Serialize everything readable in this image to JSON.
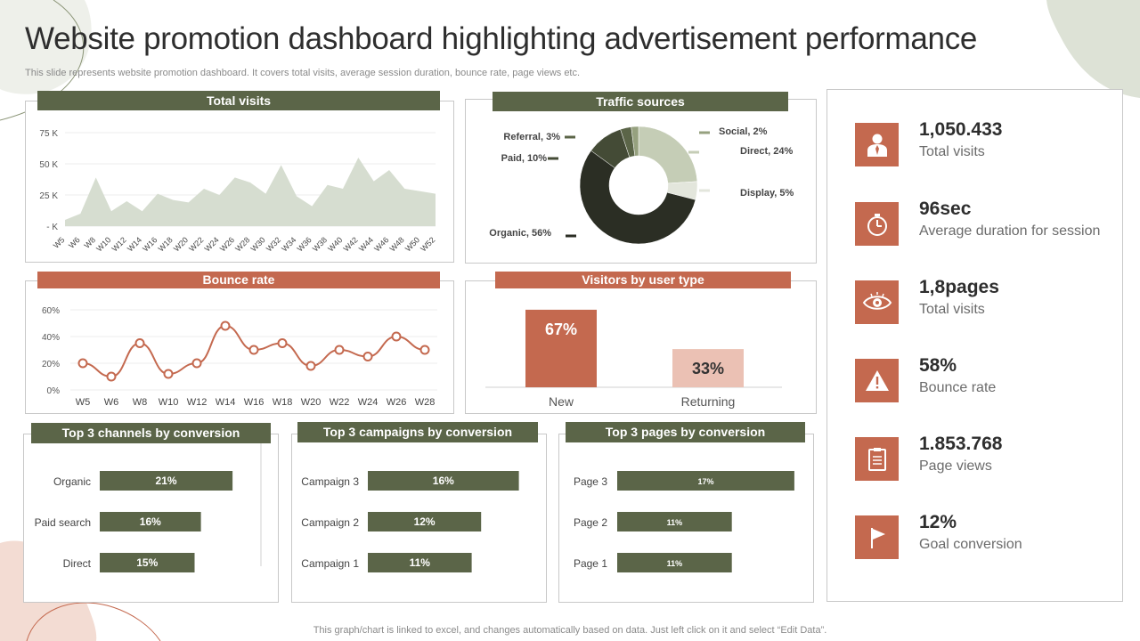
{
  "page": {
    "title": "Website promotion dashboard highlighting advertisement performance",
    "subtitle": "This slide represents website promotion dashboard. It covers total visits, average session duration, bounce rate, page views etc.",
    "footer": "This graph/chart is linked to excel,  and changes automatically based on data. Just left click on it and select “Edit Data”."
  },
  "colors": {
    "accent_green": "#5b6548",
    "accent_rust": "#c4694f",
    "area_fill": "#d6ddd0",
    "dark": "#2b2e24"
  },
  "kpis": [
    {
      "value": "1,050.433",
      "label": "Total visits",
      "icon": "user-icon"
    },
    {
      "value": "96sec",
      "label": "Average duration for session",
      "icon": "stopwatch-icon"
    },
    {
      "value": "1,8pages",
      "label": "Total visits",
      "icon": "eye-icon"
    },
    {
      "value": "58%",
      "label": "Bounce rate",
      "icon": "warning-icon"
    },
    {
      "value": "1.853.768",
      "label": "Page views",
      "icon": "clipboard-icon"
    },
    {
      "value": "12%",
      "label": "Goal conversion",
      "icon": "flag-icon"
    }
  ],
  "chart_data": [
    {
      "id": "total_visits",
      "type": "area",
      "title": "Total visits",
      "x": [
        "W5",
        "W6",
        "W8",
        "W10",
        "W12",
        "W14",
        "W16",
        "W18",
        "W20",
        "W22",
        "W24",
        "W26",
        "W28",
        "W30",
        "W32",
        "W34",
        "W36",
        "W38",
        "W40",
        "W42",
        "W44",
        "W46",
        "W48",
        "W50",
        "W52"
      ],
      "values": [
        5000,
        10000,
        39000,
        12000,
        20000,
        12000,
        26000,
        21000,
        19000,
        30000,
        25000,
        39000,
        35000,
        26000,
        49000,
        24000,
        16000,
        33000,
        30000,
        55000,
        36000,
        45000,
        30000,
        28000,
        26000
      ],
      "ticks": [
        "- K",
        "25 K",
        "50 K",
        "75 K"
      ],
      "tick_values": [
        0,
        25000,
        50000,
        75000
      ],
      "ylim": [
        0,
        80000
      ]
    },
    {
      "id": "traffic_sources",
      "type": "pie",
      "title": "Traffic sources",
      "slices": [
        {
          "label": "Direct, 24%",
          "value": 24,
          "color": "#c5cdb6"
        },
        {
          "label": "Display, 5%",
          "value": 5,
          "color": "#e3e6dc"
        },
        {
          "label": "Organic, 56%",
          "value": 56,
          "color": "#2b2e24"
        },
        {
          "label": "Paid, 10%",
          "value": 10,
          "color": "#444b36"
        },
        {
          "label": "Referral, 3%",
          "value": 3,
          "color": "#5b6548"
        },
        {
          "label": "Social, 2%",
          "value": 2,
          "color": "#96a17f"
        }
      ]
    },
    {
      "id": "bounce_rate",
      "type": "line",
      "title": "Bounce rate",
      "x": [
        "W5",
        "W6",
        "W8",
        "W10",
        "W12",
        "W14",
        "W16",
        "W18",
        "W20",
        "W22",
        "W24",
        "W26",
        "W28"
      ],
      "values": [
        20,
        10,
        35,
        12,
        20,
        48,
        30,
        35,
        18,
        30,
        25,
        40,
        30
      ],
      "ticks": [
        "0%",
        "20%",
        "40%",
        "60%"
      ],
      "tick_values": [
        0,
        20,
        40,
        60
      ],
      "ylim": [
        0,
        60
      ]
    },
    {
      "id": "visitors_by_user_type",
      "type": "bar",
      "title": "Visitors  by user type",
      "categories": [
        "New",
        "Returning"
      ],
      "values": [
        67,
        33
      ],
      "value_labels": [
        "67%",
        "33%"
      ],
      "ylim": [
        0,
        70
      ]
    },
    {
      "id": "top_channels",
      "type": "bar",
      "title": "Top 3 channels by conversion",
      "categories": [
        "Organic",
        "Paid search",
        "Direct"
      ],
      "values": [
        21,
        16,
        15
      ],
      "value_labels": [
        "21%",
        "16%",
        "15%"
      ]
    },
    {
      "id": "top_campaigns",
      "type": "bar",
      "title": "Top 3 campaigns by conversion",
      "categories": [
        "Campaign 3",
        "Campaign 2",
        "Campaign 1"
      ],
      "values": [
        16,
        12,
        11
      ],
      "value_labels": [
        "16%",
        "12%",
        "11%"
      ]
    },
    {
      "id": "top_pages",
      "type": "bar",
      "title": "Top 3 pages by conversion",
      "categories": [
        "Page 3",
        "Page 2",
        "Page 1"
      ],
      "values": [
        17,
        11,
        11
      ],
      "value_labels": [
        "17%",
        "11%",
        "11%"
      ]
    }
  ]
}
